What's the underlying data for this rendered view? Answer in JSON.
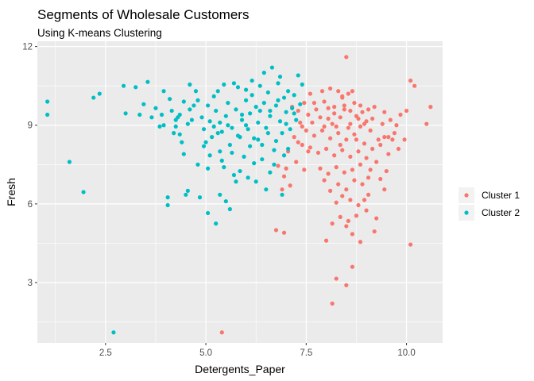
{
  "chart_data": {
    "type": "scatter",
    "title": "Segments of Wholesale Customers",
    "subtitle": "Using K-means Clustering",
    "xlabel": "Detergents_Paper",
    "ylabel": "Fresh",
    "xlim": [
      0.8,
      10.9
    ],
    "ylim": [
      0.7,
      12.2
    ],
    "x_ticks": [
      2.5,
      5.0,
      7.5,
      10.0
    ],
    "x_tick_labels": [
      "2.5",
      "5.0",
      "7.5",
      "10.0"
    ],
    "y_ticks": [
      3,
      6,
      9,
      12
    ],
    "y_tick_labels": [
      "3",
      "6",
      "9",
      "12"
    ],
    "grid": true,
    "legend_position": "right",
    "series": [
      {
        "name": "Cluster 1",
        "color": "#F8766D",
        "points": [
          [
            8.5,
            11.6
          ],
          [
            10.1,
            10.7
          ],
          [
            10.2,
            10.5
          ],
          [
            10.6,
            9.7
          ],
          [
            10.5,
            9.05
          ],
          [
            10.1,
            4.45
          ],
          [
            7.6,
            10.2
          ],
          [
            7.9,
            10.3
          ],
          [
            8.1,
            10.4
          ],
          [
            8.3,
            10.3
          ],
          [
            8.4,
            10.1
          ],
          [
            8.55,
            10.2
          ],
          [
            7.7,
            9.85
          ],
          [
            7.95,
            9.9
          ],
          [
            8.2,
            9.7
          ],
          [
            8.45,
            9.6
          ],
          [
            8.7,
            9.85
          ],
          [
            8.9,
            9.5
          ],
          [
            9.2,
            9.7
          ],
          [
            9.45,
            9.5
          ],
          [
            9.6,
            9.2
          ],
          [
            9.75,
            9.0
          ],
          [
            9.85,
            9.4
          ],
          [
            10.0,
            9.55
          ],
          [
            9.4,
            9.05
          ],
          [
            9.7,
            8.7
          ],
          [
            9.95,
            8.45
          ],
          [
            9.3,
            8.45
          ],
          [
            9.1,
            8.8
          ],
          [
            9.0,
            9.15
          ],
          [
            8.8,
            9.25
          ],
          [
            8.6,
            9.05
          ],
          [
            8.35,
            9.3
          ],
          [
            8.15,
            9.05
          ],
          [
            7.85,
            9.3
          ],
          [
            7.55,
            9.4
          ],
          [
            7.35,
            9.1
          ],
          [
            7.5,
            8.8
          ],
          [
            7.7,
            8.6
          ],
          [
            7.9,
            8.8
          ],
          [
            8.1,
            8.5
          ],
          [
            8.3,
            8.7
          ],
          [
            8.5,
            8.45
          ],
          [
            8.7,
            8.65
          ],
          [
            8.95,
            8.3
          ],
          [
            9.15,
            8.1
          ],
          [
            9.35,
            8.25
          ],
          [
            9.55,
            7.9
          ],
          [
            9.25,
            7.6
          ],
          [
            9.0,
            7.75
          ],
          [
            8.8,
            8.0
          ],
          [
            8.6,
            7.8
          ],
          [
            8.4,
            8.05
          ],
          [
            8.2,
            7.85
          ],
          [
            8.0,
            8.1
          ],
          [
            7.8,
            7.95
          ],
          [
            7.6,
            8.15
          ],
          [
            7.4,
            8.25
          ],
          [
            7.2,
            8.55
          ],
          [
            7.05,
            8.0
          ],
          [
            7.25,
            7.6
          ],
          [
            7.45,
            7.3
          ],
          [
            7.0,
            7.35
          ],
          [
            6.8,
            7.45
          ],
          [
            6.95,
            7.05
          ],
          [
            7.55,
            8.0
          ],
          [
            7.85,
            7.35
          ],
          [
            8.05,
            7.15
          ],
          [
            8.25,
            7.4
          ],
          [
            8.45,
            7.2
          ],
          [
            8.65,
            7.3
          ],
          [
            8.85,
            7.5
          ],
          [
            9.05,
            7.0
          ],
          [
            8.9,
            6.75
          ],
          [
            8.7,
            6.9
          ],
          [
            8.5,
            6.55
          ],
          [
            8.3,
            6.75
          ],
          [
            8.1,
            6.5
          ],
          [
            7.95,
            6.9
          ],
          [
            8.4,
            6.3
          ],
          [
            8.6,
            6.15
          ],
          [
            8.8,
            5.95
          ],
          [
            9.0,
            5.75
          ],
          [
            8.75,
            5.55
          ],
          [
            8.55,
            5.35
          ],
          [
            8.35,
            5.5
          ],
          [
            8.15,
            5.25
          ],
          [
            8.5,
            5.15
          ],
          [
            8.65,
            4.85
          ],
          [
            8.85,
            4.55
          ],
          [
            8.0,
            4.6
          ],
          [
            9.25,
            5.45
          ],
          [
            9.45,
            6.55
          ],
          [
            9.05,
            6.35
          ],
          [
            8.95,
            6.15
          ],
          [
            9.35,
            6.95
          ],
          [
            9.5,
            7.25
          ],
          [
            9.65,
            8.45
          ],
          [
            8.75,
            8.45
          ],
          [
            8.55,
            8.9
          ],
          [
            8.35,
            8.25
          ],
          [
            8.2,
            9.45
          ],
          [
            8.05,
            9.65
          ],
          [
            7.75,
            9.6
          ],
          [
            8.6,
            9.55
          ],
          [
            8.85,
            9.75
          ],
          [
            9.05,
            9.6
          ],
          [
            7.15,
            9.7
          ],
          [
            7.3,
            9.55
          ],
          [
            7.4,
            8.95
          ],
          [
            7.65,
            9.1
          ],
          [
            7.95,
            8.95
          ],
          [
            8.25,
            8.95
          ],
          [
            8.45,
            9.75
          ],
          [
            8.65,
            10.3
          ],
          [
            8.75,
            9.35
          ],
          [
            8.95,
            9.05
          ],
          [
            9.15,
            9.25
          ],
          [
            9.55,
            8.55
          ],
          [
            9.8,
            8.1
          ],
          [
            6.9,
            6.55
          ],
          [
            7.1,
            6.7
          ],
          [
            6.75,
            5.0
          ],
          [
            6.95,
            4.9
          ],
          [
            8.5,
            2.9
          ],
          [
            8.25,
            3.15
          ],
          [
            8.65,
            3.6
          ],
          [
            8.15,
            2.2
          ],
          [
            5.4,
            1.1
          ],
          [
            9.2,
            4.95
          ],
          [
            7.3,
            8.35
          ],
          [
            8.85,
            8.95
          ],
          [
            9.45,
            8.55
          ],
          [
            8.05,
            9.25
          ],
          [
            7.45,
            9.85
          ],
          [
            8.4,
            10.05
          ],
          [
            9.1,
            7.3
          ],
          [
            8.25,
            6.05
          ]
        ]
      },
      {
        "name": "Cluster 2",
        "color": "#00BFC4",
        "points": [
          [
            1.05,
            9.9
          ],
          [
            1.05,
            9.4
          ],
          [
            1.6,
            7.6
          ],
          [
            1.95,
            6.45
          ],
          [
            2.7,
            1.1
          ],
          [
            2.2,
            10.05
          ],
          [
            2.35,
            10.2
          ],
          [
            2.95,
            10.5
          ],
          [
            3.0,
            9.45
          ],
          [
            3.25,
            10.45
          ],
          [
            3.35,
            9.4
          ],
          [
            3.45,
            9.8
          ],
          [
            3.55,
            10.65
          ],
          [
            3.75,
            9.65
          ],
          [
            3.85,
            8.95
          ],
          [
            3.9,
            9.4
          ],
          [
            3.95,
            9.0
          ],
          [
            3.95,
            10.3
          ],
          [
            4.05,
            6.25
          ],
          [
            4.05,
            5.95
          ],
          [
            4.15,
            9.55
          ],
          [
            4.25,
            8.95
          ],
          [
            4.3,
            9.3
          ],
          [
            4.35,
            8.65
          ],
          [
            4.4,
            8.35
          ],
          [
            4.45,
            7.9
          ],
          [
            4.5,
            6.35
          ],
          [
            4.55,
            6.5
          ],
          [
            4.55,
            9.05
          ],
          [
            4.6,
            9.6
          ],
          [
            4.6,
            10.55
          ],
          [
            4.65,
            9.2
          ],
          [
            4.75,
            10.3
          ],
          [
            4.8,
            9.95
          ],
          [
            4.85,
            6.25
          ],
          [
            4.9,
            9.3
          ],
          [
            4.95,
            8.85
          ],
          [
            5.0,
            8.35
          ],
          [
            5.05,
            5.65
          ],
          [
            5.05,
            9.75
          ],
          [
            5.1,
            7.85
          ],
          [
            5.15,
            8.55
          ],
          [
            5.2,
            8.95
          ],
          [
            5.25,
            9.55
          ],
          [
            5.3,
            10.3
          ],
          [
            5.35,
            8.0
          ],
          [
            5.35,
            9.1
          ],
          [
            5.4,
            8.75
          ],
          [
            5.45,
            7.4
          ],
          [
            5.5,
            9.35
          ],
          [
            5.55,
            9.85
          ],
          [
            5.6,
            8.25
          ],
          [
            5.65,
            8.9
          ],
          [
            5.7,
            7.1
          ],
          [
            5.75,
            6.85
          ],
          [
            5.75,
            9.6
          ],
          [
            5.8,
            10.45
          ],
          [
            5.85,
            8.55
          ],
          [
            5.9,
            9.2
          ],
          [
            5.95,
            7.8
          ],
          [
            6.0,
            9.95
          ],
          [
            6.05,
            8.85
          ],
          [
            6.1,
            9.45
          ],
          [
            6.15,
            10.15
          ],
          [
            6.2,
            7.55
          ],
          [
            6.2,
            8.5
          ],
          [
            6.25,
            9.7
          ],
          [
            6.3,
            9.1
          ],
          [
            6.35,
            10.5
          ],
          [
            6.4,
            8.25
          ],
          [
            6.45,
            9.85
          ],
          [
            6.5,
            8.9
          ],
          [
            6.55,
            10.25
          ],
          [
            6.6,
            9.35
          ],
          [
            6.65,
            11.2
          ],
          [
            6.7,
            8.05
          ],
          [
            6.75,
            9.75
          ],
          [
            6.8,
            10.6
          ],
          [
            6.85,
            9.15
          ],
          [
            6.9,
            8.7
          ],
          [
            6.95,
            10.05
          ],
          [
            7.0,
            9.5
          ],
          [
            7.05,
            10.3
          ],
          [
            7.1,
            8.85
          ],
          [
            7.15,
            9.65
          ],
          [
            7.2,
            10.15
          ],
          [
            7.25,
            9.2
          ],
          [
            7.3,
            10.9
          ],
          [
            7.35,
            9.8
          ],
          [
            7.4,
            10.55
          ],
          [
            5.25,
            5.25
          ],
          [
            5.6,
            5.8
          ],
          [
            5.35,
            6.35
          ],
          [
            5.5,
            6.1
          ],
          [
            4.8,
            7.5
          ],
          [
            4.95,
            8.2
          ],
          [
            5.85,
            7.25
          ],
          [
            6.05,
            7.0
          ],
          [
            6.25,
            6.85
          ],
          [
            6.5,
            6.55
          ],
          [
            6.7,
            7.5
          ],
          [
            6.9,
            6.35
          ],
          [
            6.0,
            10.35
          ],
          [
            5.45,
            10.55
          ],
          [
            5.2,
            10.1
          ],
          [
            4.7,
            9.75
          ],
          [
            4.35,
            9.4
          ],
          [
            4.2,
            8.7
          ],
          [
            5.9,
            9.4
          ],
          [
            6.1,
            8.2
          ],
          [
            6.35,
            9.55
          ],
          [
            6.55,
            8.7
          ],
          [
            6.8,
            9.95
          ],
          [
            7.05,
            8.1
          ],
          [
            6.45,
            11.0
          ],
          [
            6.85,
            10.85
          ],
          [
            5.7,
            10.6
          ],
          [
            6.15,
            10.7
          ],
          [
            5.1,
            9.15
          ],
          [
            5.3,
            8.7
          ],
          [
            5.55,
            9.0
          ],
          [
            5.8,
            8.6
          ],
          [
            6.0,
            9.0
          ],
          [
            6.3,
            8.45
          ],
          [
            6.6,
            9.55
          ],
          [
            6.75,
            8.4
          ],
          [
            7.0,
            9.05
          ],
          [
            7.2,
            9.45
          ],
          [
            4.45,
            9.9
          ],
          [
            4.25,
            9.2
          ],
          [
            3.65,
            9.3
          ],
          [
            4.1,
            10.0
          ],
          [
            5.05,
            7.35
          ],
          [
            5.4,
            7.65
          ],
          [
            5.65,
            7.95
          ],
          [
            6.4,
            7.7
          ],
          [
            6.6,
            7.2
          ],
          [
            6.95,
            7.85
          ]
        ]
      }
    ]
  }
}
